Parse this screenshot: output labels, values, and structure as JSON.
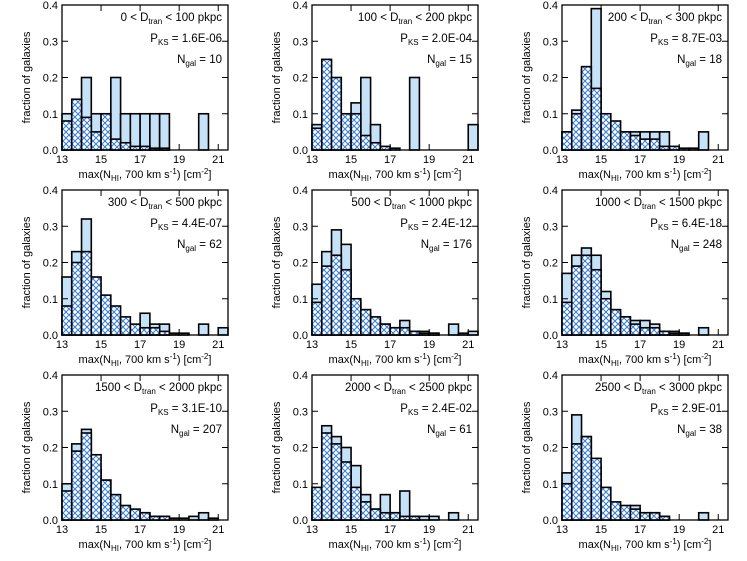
{
  "chart_data": [
    {
      "type": "histogram",
      "xlim": [
        13,
        21.5
      ],
      "ylim": [
        0,
        0.4
      ],
      "xticks": [
        13,
        15,
        17,
        19,
        21
      ],
      "yticks": [
        {
          "value": 0,
          "label": "0.0"
        },
        {
          "value": 0.1,
          "label": "0.1"
        },
        {
          "value": 0.2,
          "label": "0.2"
        },
        {
          "value": 0.3,
          "label": "0.3"
        },
        {
          "value": 0.4,
          "label": "0.4"
        }
      ],
      "ylabel": "fraction of galaxies",
      "xlabel": [
        "max(N",
        "HI",
        ", 700 km s",
        "-1",
        ") [cm",
        "-2",
        "]"
      ],
      "annotations": [
        [
          "0 < D",
          "tran",
          " < 100 pkpc"
        ],
        [
          "P",
          "KS",
          " = 1.6E-06"
        ],
        [
          "N",
          "gal",
          " = 10"
        ]
      ],
      "bins": [
        13,
        13.5,
        14,
        14.5,
        15,
        15.5,
        16,
        16.5,
        17,
        17.5,
        18,
        18.5,
        19,
        19.5,
        20,
        20.5,
        21,
        21.5
      ],
      "series": [
        {
          "color": "#c6e2f9",
          "values": [
            0.1,
            0.1,
            0.2,
            0.1,
            0,
            0.2,
            0.1,
            0.1,
            0.1,
            0.1,
            0.1,
            0,
            0,
            0,
            0.1,
            0,
            0
          ]
        },
        {
          "color": "#3a7fd5",
          "hatch": true,
          "values": [
            0.08,
            0.14,
            0.09,
            0.05,
            0.1,
            0.03,
            0.02,
            0.01,
            0.01,
            0.005,
            0.005,
            0,
            0,
            0,
            0,
            0,
            0
          ]
        }
      ]
    },
    {
      "type": "histogram",
      "xlim": [
        13,
        21.5
      ],
      "ylim": [
        0,
        0.4
      ],
      "xticks": [
        13,
        15,
        17,
        19,
        21
      ],
      "yticks": [
        {
          "value": 0,
          "label": "0.0"
        },
        {
          "value": 0.1,
          "label": "0.1"
        },
        {
          "value": 0.2,
          "label": "0.2"
        },
        {
          "value": 0.3,
          "label": "0.3"
        },
        {
          "value": 0.4,
          "label": "0.4"
        }
      ],
      "ylabel": "fraction of galaxies",
      "xlabel": [
        "max(N",
        "HI",
        ", 700 km s",
        "-1",
        ") [cm",
        "-2",
        "]"
      ],
      "annotations": [
        [
          "100 < D",
          "tran",
          " < 200 pkpc"
        ],
        [
          "P",
          "KS",
          " = 2.0E-04"
        ],
        [
          "N",
          "gal",
          " = 15"
        ]
      ],
      "bins": [
        13,
        13.5,
        14,
        14.5,
        15,
        15.5,
        16,
        16.5,
        17,
        17.5,
        18,
        18.5,
        19,
        19.5,
        20,
        20.5,
        21,
        21.5
      ],
      "series": [
        {
          "color": "#c6e2f9",
          "values": [
            0.07,
            0.07,
            0.07,
            0.07,
            0.13,
            0.2,
            0.07,
            0,
            0,
            0,
            0.2,
            0,
            0,
            0,
            0,
            0,
            0.07
          ]
        },
        {
          "color": "#3a7fd5",
          "hatch": true,
          "values": [
            0.06,
            0.25,
            0.2,
            0.1,
            0.1,
            0.04,
            0.02,
            0.01,
            0.005,
            0,
            0,
            0,
            0,
            0,
            0,
            0,
            0
          ]
        }
      ]
    },
    {
      "type": "histogram",
      "xlim": [
        13,
        21.5
      ],
      "ylim": [
        0,
        0.4
      ],
      "xticks": [
        13,
        15,
        17,
        19,
        21
      ],
      "yticks": [
        {
          "value": 0,
          "label": "0.0"
        },
        {
          "value": 0.1,
          "label": "0.1"
        },
        {
          "value": 0.2,
          "label": "0.2"
        },
        {
          "value": 0.3,
          "label": "0.3"
        },
        {
          "value": 0.4,
          "label": "0.4"
        }
      ],
      "ylabel": "fraction of galaxies",
      "xlabel": [
        "max(N",
        "HI",
        ", 700 km s",
        "-1",
        ") [cm",
        "-2",
        "]"
      ],
      "annotations": [
        [
          "200 < D",
          "tran",
          " < 300 pkpc"
        ],
        [
          "P",
          "KS",
          " = 8.7E-03"
        ],
        [
          "N",
          "gal",
          " = 18"
        ]
      ],
      "bins": [
        13,
        13.5,
        14,
        14.5,
        15,
        15.5,
        16,
        16.5,
        17,
        17.5,
        18,
        18.5,
        19,
        19.5,
        20,
        20.5,
        21,
        21.5
      ],
      "series": [
        {
          "color": "#c6e2f9",
          "values": [
            0.05,
            0.11,
            0.22,
            0.39,
            0.05,
            0.05,
            0.05,
            0.05,
            0.05,
            0.05,
            0.05,
            0,
            0,
            0,
            0.05,
            0,
            0
          ]
        },
        {
          "color": "#3a7fd5",
          "hatch": true,
          "values": [
            0.05,
            0.1,
            0.23,
            0.17,
            0.1,
            0.08,
            0.05,
            0.04,
            0.03,
            0.03,
            0.01,
            0.01,
            0.005,
            0.005,
            0,
            0,
            0
          ]
        }
      ]
    },
    {
      "type": "histogram",
      "xlim": [
        13,
        21.5
      ],
      "ylim": [
        0,
        0.4
      ],
      "xticks": [
        13,
        15,
        17,
        19,
        21
      ],
      "yticks": [
        {
          "value": 0,
          "label": "0.0"
        },
        {
          "value": 0.1,
          "label": "0.1"
        },
        {
          "value": 0.2,
          "label": "0.2"
        },
        {
          "value": 0.3,
          "label": "0.3"
        },
        {
          "value": 0.4,
          "label": "0.4"
        }
      ],
      "ylabel": "fraction of galaxies",
      "xlabel": [
        "max(N",
        "HI",
        ", 700 km s",
        "-1",
        ") [cm",
        "-2",
        "]"
      ],
      "annotations": [
        [
          "300 < D",
          "tran",
          " < 500 pkpc"
        ],
        [
          "P",
          "KS",
          " = 4.4E-07"
        ],
        [
          "N",
          "gal",
          " = 62"
        ]
      ],
      "bins": [
        13,
        13.5,
        14,
        14.5,
        15,
        15.5,
        16,
        16.5,
        17,
        17.5,
        18,
        18.5,
        19,
        19.5,
        20,
        20.5,
        21,
        21.5
      ],
      "series": [
        {
          "color": "#c6e2f9",
          "values": [
            0.16,
            0.23,
            0.32,
            0.11,
            0.05,
            0.05,
            0.02,
            0.02,
            0.06,
            0.03,
            0.03,
            0,
            0,
            0,
            0.03,
            0,
            0.02
          ]
        },
        {
          "color": "#3a7fd5",
          "hatch": true,
          "values": [
            0.08,
            0.2,
            0.23,
            0.16,
            0.11,
            0.08,
            0.05,
            0.03,
            0.02,
            0.02,
            0.01,
            0.005,
            0.005,
            0,
            0,
            0,
            0
          ]
        }
      ]
    },
    {
      "type": "histogram",
      "xlim": [
        13,
        21.5
      ],
      "ylim": [
        0,
        0.4
      ],
      "xticks": [
        13,
        15,
        17,
        19,
        21
      ],
      "yticks": [
        {
          "value": 0,
          "label": "0.0"
        },
        {
          "value": 0.1,
          "label": "0.1"
        },
        {
          "value": 0.2,
          "label": "0.2"
        },
        {
          "value": 0.3,
          "label": "0.3"
        },
        {
          "value": 0.4,
          "label": "0.4"
        }
      ],
      "ylabel": "fraction of galaxies",
      "xlabel": [
        "max(N",
        "HI",
        ", 700 km s",
        "-1",
        ") [cm",
        "-2",
        "]"
      ],
      "annotations": [
        [
          "500 < D",
          "tran",
          " < 1000 pkpc"
        ],
        [
          "P",
          "KS",
          " = 2.4E-12"
        ],
        [
          "N",
          "gal",
          " = 176"
        ]
      ],
      "bins": [
        13,
        13.5,
        14,
        14.5,
        15,
        15.5,
        16,
        16.5,
        17,
        17.5,
        18,
        18.5,
        19,
        19.5,
        20,
        20.5,
        21,
        21.5
      ],
      "series": [
        {
          "color": "#c6e2f9",
          "values": [
            0.14,
            0.23,
            0.29,
            0.25,
            0.09,
            0.06,
            0.04,
            0.03,
            0.02,
            0.04,
            0.01,
            0.01,
            0.005,
            0,
            0.03,
            0.005,
            0.01
          ]
        },
        {
          "color": "#3a7fd5",
          "hatch": true,
          "values": [
            0.09,
            0.19,
            0.22,
            0.18,
            0.1,
            0.07,
            0.05,
            0.03,
            0.02,
            0.02,
            0.01,
            0.005,
            0.005,
            0,
            0,
            0,
            0
          ]
        }
      ]
    },
    {
      "type": "histogram",
      "xlim": [
        13,
        21.5
      ],
      "ylim": [
        0,
        0.4
      ],
      "xticks": [
        13,
        15,
        17,
        19,
        21
      ],
      "yticks": [
        {
          "value": 0,
          "label": "0.0"
        },
        {
          "value": 0.1,
          "label": "0.1"
        },
        {
          "value": 0.2,
          "label": "0.2"
        },
        {
          "value": 0.3,
          "label": "0.3"
        },
        {
          "value": 0.4,
          "label": "0.4"
        }
      ],
      "ylabel": "fraction of galaxies",
      "xlabel": [
        "max(N",
        "HI",
        ", 700 km s",
        "-1",
        ") [cm",
        "-2",
        "]"
      ],
      "annotations": [
        [
          "1000 < D",
          "tran",
          " < 1500 pkpc"
        ],
        [
          "P",
          "KS",
          " = 6.4E-18"
        ],
        [
          "N",
          "gal",
          " = 248"
        ]
      ],
      "bins": [
        13,
        13.5,
        14,
        14.5,
        15,
        15.5,
        16,
        16.5,
        17,
        17.5,
        18,
        18.5,
        19,
        19.5,
        20,
        20.5,
        21,
        21.5
      ],
      "series": [
        {
          "color": "#c6e2f9",
          "values": [
            0.17,
            0.22,
            0.24,
            0.22,
            0.12,
            0.06,
            0.05,
            0.04,
            0.04,
            0.03,
            0.01,
            0.01,
            0.005,
            0,
            0.02,
            0,
            0
          ]
        },
        {
          "color": "#3a7fd5",
          "hatch": true,
          "values": [
            0.09,
            0.19,
            0.22,
            0.18,
            0.1,
            0.07,
            0.05,
            0.03,
            0.02,
            0.02,
            0.01,
            0.005,
            0.005,
            0,
            0,
            0,
            0
          ]
        }
      ]
    },
    {
      "type": "histogram",
      "xlim": [
        13,
        21.5
      ],
      "ylim": [
        0,
        0.4
      ],
      "xticks": [
        13,
        15,
        17,
        19,
        21
      ],
      "yticks": [
        {
          "value": 0,
          "label": "0.0"
        },
        {
          "value": 0.1,
          "label": "0.1"
        },
        {
          "value": 0.2,
          "label": "0.2"
        },
        {
          "value": 0.3,
          "label": "0.3"
        },
        {
          "value": 0.4,
          "label": "0.4"
        }
      ],
      "ylabel": "fraction of galaxies",
      "xlabel": [
        "max(N",
        "HI",
        ", 700 km s",
        "-1",
        ") [cm",
        "-2",
        "]"
      ],
      "annotations": [
        [
          "1500 < D",
          "tran",
          " < 2000 pkpc"
        ],
        [
          "P",
          "KS",
          " = 3.1E-10"
        ],
        [
          "N",
          "gal",
          " = 207"
        ]
      ],
      "bins": [
        13,
        13.5,
        14,
        14.5,
        15,
        15.5,
        16,
        16.5,
        17,
        17.5,
        18,
        18.5,
        19,
        19.5,
        20,
        20.5,
        21,
        21.5
      ],
      "series": [
        {
          "color": "#c6e2f9",
          "values": [
            0.1,
            0.21,
            0.25,
            0.14,
            0.11,
            0.04,
            0.03,
            0.02,
            0.02,
            0.01,
            0.01,
            0.005,
            0.005,
            0.01,
            0.02,
            0.005,
            0
          ]
        },
        {
          "color": "#3a7fd5",
          "hatch": true,
          "values": [
            0.08,
            0.19,
            0.24,
            0.18,
            0.11,
            0.07,
            0.04,
            0.03,
            0.02,
            0.01,
            0.01,
            0,
            0,
            0,
            0,
            0,
            0
          ]
        }
      ]
    },
    {
      "type": "histogram",
      "xlim": [
        13,
        21.5
      ],
      "ylim": [
        0,
        0.4
      ],
      "xticks": [
        13,
        15,
        17,
        19,
        21
      ],
      "yticks": [
        {
          "value": 0,
          "label": "0.0"
        },
        {
          "value": 0.1,
          "label": "0.1"
        },
        {
          "value": 0.2,
          "label": "0.2"
        },
        {
          "value": 0.3,
          "label": "0.3"
        },
        {
          "value": 0.4,
          "label": "0.4"
        }
      ],
      "ylabel": "fraction of galaxies",
      "xlabel": [
        "max(N",
        "HI",
        ", 700 km s",
        "-1",
        ") [cm",
        "-2",
        "]"
      ],
      "annotations": [
        [
          "2000 < D",
          "tran",
          " < 2500 pkpc"
        ],
        [
          "P",
          "KS",
          " = 2.4E-02"
        ],
        [
          "N",
          "gal",
          " = 61"
        ]
      ],
      "bins": [
        13,
        13.5,
        14,
        14.5,
        15,
        15.5,
        16,
        16.5,
        17,
        17.5,
        18,
        18.5,
        19,
        19.5,
        20,
        20.5,
        21,
        21.5
      ],
      "series": [
        {
          "color": "#c6e2f9",
          "values": [
            0.08,
            0.26,
            0.23,
            0.2,
            0.15,
            0.07,
            0.03,
            0.07,
            0.02,
            0.08,
            0.01,
            0.01,
            0.01,
            0,
            0.02,
            0,
            0
          ]
        },
        {
          "color": "#3a7fd5",
          "hatch": true,
          "values": [
            0.09,
            0.24,
            0.21,
            0.16,
            0.09,
            0.05,
            0.03,
            0.02,
            0.02,
            0.01,
            0.01,
            0,
            0,
            0,
            0,
            0,
            0
          ]
        }
      ]
    },
    {
      "type": "histogram",
      "xlim": [
        13,
        21.5
      ],
      "ylim": [
        0,
        0.4
      ],
      "xticks": [
        13,
        15,
        17,
        19,
        21
      ],
      "yticks": [
        {
          "value": 0,
          "label": "0.0"
        },
        {
          "value": 0.1,
          "label": "0.1"
        },
        {
          "value": 0.2,
          "label": "0.2"
        },
        {
          "value": 0.3,
          "label": "0.3"
        },
        {
          "value": 0.4,
          "label": "0.4"
        }
      ],
      "ylabel": "fraction of galaxies",
      "xlabel": [
        "max(N",
        "HI",
        ", 700 km s",
        "-1",
        ") [cm",
        "-2",
        "]"
      ],
      "annotations": [
        [
          "2500 < D",
          "tran",
          " < 3000 pkpc"
        ],
        [
          "P",
          "KS",
          " = 2.9E-01"
        ],
        [
          "N",
          "gal",
          " = 38"
        ]
      ],
      "bins": [
        13,
        13.5,
        14,
        14.5,
        15,
        15.5,
        16,
        16.5,
        17,
        17.5,
        18,
        18.5,
        19,
        19.5,
        20,
        20.5,
        21,
        21.5
      ],
      "series": [
        {
          "color": "#c6e2f9",
          "values": [
            0.13,
            0.29,
            0.23,
            0.15,
            0.04,
            0.03,
            0.02,
            0.04,
            0.02,
            0.02,
            0.01,
            0,
            0,
            0,
            0.02,
            0,
            0
          ]
        },
        {
          "color": "#3a7fd5",
          "hatch": true,
          "values": [
            0.1,
            0.21,
            0.23,
            0.17,
            0.09,
            0.05,
            0.04,
            0.03,
            0.02,
            0.02,
            0.01,
            0,
            0,
            0,
            0,
            0,
            0
          ]
        }
      ]
    }
  ]
}
